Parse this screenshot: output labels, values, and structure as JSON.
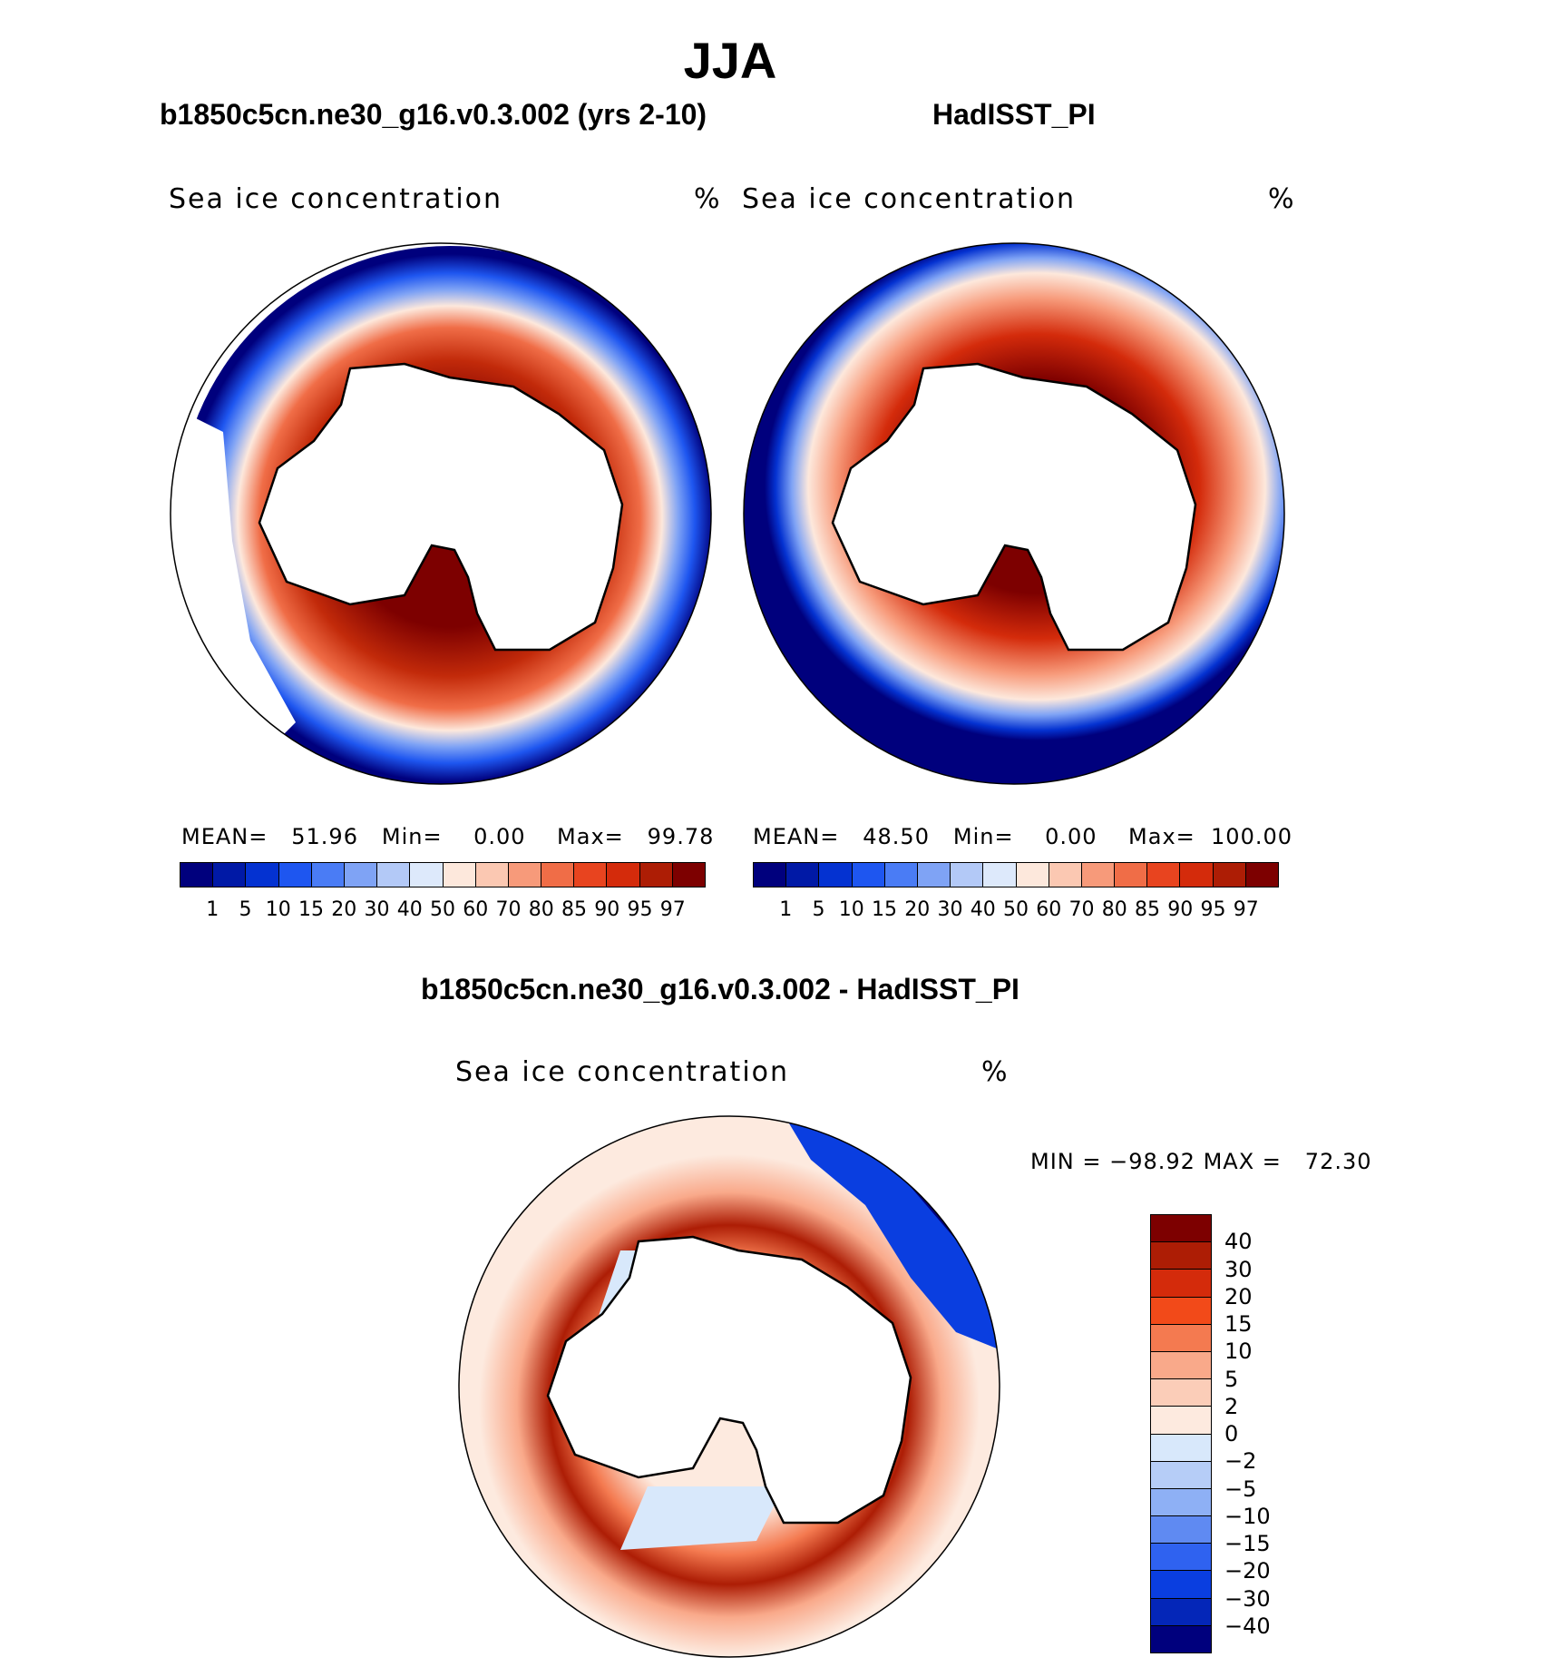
{
  "title": "JJA",
  "panels": [
    {
      "subtitle": "b1850c5cn.ne30_g16.v0.3.002 (yrs 2-10)",
      "label": "Sea ice concentration",
      "units": "%",
      "stats": {
        "mean_label": "MEAN=",
        "mean": "51.96",
        "min_label": "Min=",
        "min": "0.00",
        "max_label": "Max=",
        "max": "99.78"
      }
    },
    {
      "subtitle": "HadISST_PI",
      "label": "Sea ice concentration",
      "units": "%",
      "stats": {
        "mean_label": "MEAN=",
        "mean": "48.50",
        "min_label": "Min=",
        "min": "0.00",
        "max_label": "Max=",
        "max": "100.00"
      }
    },
    {
      "subtitle": "b1850c5cn.ne30_g16.v0.3.002 - HadISST_PI",
      "label": "Sea ice concentration",
      "units": "%",
      "stats": {
        "min_label": "MIN =",
        "min": "−98.92",
        "max_label": "MAX =",
        "max": "72.30"
      }
    }
  ],
  "colorbar_levels": [
    "1",
    "5",
    "10",
    "15",
    "20",
    "30",
    "40",
    "50",
    "60",
    "70",
    "80",
    "85",
    "90",
    "95",
    "97"
  ],
  "colorbar_colors": [
    "#00007d",
    "#0019a6",
    "#0432d1",
    "#1e56f0",
    "#4a7cf5",
    "#7fa3f5",
    "#b3c9f7",
    "#dde9fb",
    "#fde8dc",
    "#fbc8b2",
    "#f79a7a",
    "#f06d47",
    "#e8441f",
    "#d42b0b",
    "#ad1d05",
    "#7d0000"
  ],
  "diff_levels": [
    "40",
    "30",
    "20",
    "15",
    "10",
    "5",
    "2",
    "0",
    "−2",
    "−5",
    "−10",
    "−15",
    "−20",
    "−30",
    "−40"
  ],
  "diff_colors": [
    "#7d0000",
    "#ad1d05",
    "#d42b0b",
    "#f24a19",
    "#f47a50",
    "#f9a98a",
    "#fbcdb8",
    "#fdeadf",
    "#d8e8fb",
    "#b6cdf7",
    "#8eb0f5",
    "#5f8af2",
    "#2f62f0",
    "#0a3ee0",
    "#0426b8",
    "#00007d"
  ]
}
